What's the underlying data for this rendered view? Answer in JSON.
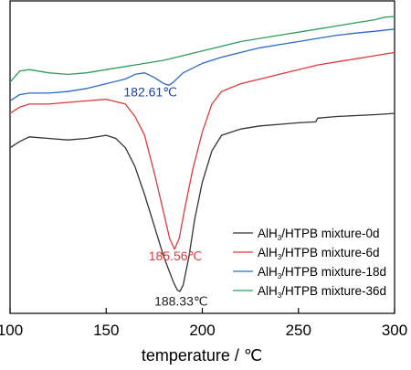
{
  "chart_data": {
    "type": "line",
    "xlabel": "temperature / ℃",
    "xlim": [
      100,
      300
    ],
    "x_ticks": [
      "100",
      "150",
      "200",
      "250",
      "300"
    ],
    "ylim": [
      0,
      100
    ],
    "y_ticks_labeled": false,
    "grid": false,
    "legend_position": "bottom-right",
    "series": [
      {
        "name_parts": [
          "AlH",
          "3",
          "/HTPB mixture-0d"
        ],
        "color": "#333333",
        "points": [
          [
            100,
            53
          ],
          [
            105,
            55
          ],
          [
            110,
            56.5
          ],
          [
            120,
            56
          ],
          [
            130,
            55.5
          ],
          [
            140,
            56
          ],
          [
            150,
            57
          ],
          [
            155,
            56
          ],
          [
            160,
            53
          ],
          [
            165,
            47
          ],
          [
            170,
            38
          ],
          [
            175,
            28
          ],
          [
            180,
            18
          ],
          [
            185,
            10
          ],
          [
            187,
            7.5
          ],
          [
            188.33,
            7
          ],
          [
            190,
            9
          ],
          [
            193,
            18
          ],
          [
            196,
            30
          ],
          [
            200,
            42
          ],
          [
            205,
            52
          ],
          [
            210,
            57
          ],
          [
            220,
            59
          ],
          [
            230,
            60
          ],
          [
            240,
            60.5
          ],
          [
            250,
            61
          ],
          [
            259,
            61.3
          ],
          [
            260,
            62.5
          ],
          [
            270,
            63
          ],
          [
            280,
            63.3
          ],
          [
            290,
            63.6
          ],
          [
            300,
            64
          ]
        ]
      },
      {
        "name_parts": [
          "AlH",
          "3",
          "/HTPB mixture-6d"
        ],
        "color": "#e03a3a",
        "points": [
          [
            100,
            64
          ],
          [
            105,
            66
          ],
          [
            110,
            67
          ],
          [
            120,
            67
          ],
          [
            130,
            67.5
          ],
          [
            140,
            68
          ],
          [
            150,
            68.5
          ],
          [
            160,
            67
          ],
          [
            165,
            63
          ],
          [
            170,
            57
          ],
          [
            175,
            45
          ],
          [
            180,
            32
          ],
          [
            183,
            24
          ],
          [
            185.56,
            20.5
          ],
          [
            188,
            24
          ],
          [
            191,
            34
          ],
          [
            195,
            46
          ],
          [
            200,
            58
          ],
          [
            205,
            67
          ],
          [
            210,
            71
          ],
          [
            220,
            73.5
          ],
          [
            230,
            75
          ],
          [
            240,
            76.5
          ],
          [
            250,
            78
          ],
          [
            260,
            79.5
          ],
          [
            270,
            80.5
          ],
          [
            280,
            81.5
          ],
          [
            290,
            82.5
          ],
          [
            300,
            83.5
          ]
        ]
      },
      {
        "name_parts": [
          "AlH",
          "3",
          "/HTPB mixture-18d"
        ],
        "color": "#2a6bc8",
        "points": [
          [
            100,
            68
          ],
          [
            105,
            70
          ],
          [
            110,
            70.5
          ],
          [
            120,
            70.5
          ],
          [
            130,
            71
          ],
          [
            140,
            72
          ],
          [
            150,
            73.5
          ],
          [
            160,
            75
          ],
          [
            165,
            76.5
          ],
          [
            170,
            77
          ],
          [
            175,
            75.5
          ],
          [
            180,
            73.5
          ],
          [
            182.61,
            73
          ],
          [
            185,
            74
          ],
          [
            190,
            77
          ],
          [
            200,
            80
          ],
          [
            210,
            82
          ],
          [
            220,
            83.5
          ],
          [
            230,
            85
          ],
          [
            240,
            86
          ],
          [
            250,
            87
          ],
          [
            260,
            88
          ],
          [
            270,
            89
          ],
          [
            280,
            89.7
          ],
          [
            290,
            90.3
          ],
          [
            300,
            91
          ]
        ]
      },
      {
        "name_parts": [
          "AlH",
          "3",
          "/HTPB mixture-36d"
        ],
        "color": "#2e9e5b",
        "points": [
          [
            100,
            74
          ],
          [
            105,
            77.5
          ],
          [
            110,
            78
          ],
          [
            120,
            77
          ],
          [
            130,
            76.5
          ],
          [
            140,
            77
          ],
          [
            150,
            78
          ],
          [
            160,
            79
          ],
          [
            170,
            80
          ],
          [
            180,
            81
          ],
          [
            190,
            82.5
          ],
          [
            200,
            84
          ],
          [
            210,
            85.5
          ],
          [
            220,
            87
          ],
          [
            230,
            88
          ],
          [
            240,
            89
          ],
          [
            250,
            90
          ],
          [
            260,
            91
          ],
          [
            270,
            92
          ],
          [
            280,
            93
          ],
          [
            290,
            94
          ],
          [
            295,
            94.8
          ],
          [
            300,
            95
          ]
        ]
      }
    ],
    "annotations": [
      {
        "text": "182.61℃",
        "color": "#1f3fa8",
        "at": [
          173,
          69.5
        ]
      },
      {
        "text": "185.56℃",
        "color": "#e03a3a",
        "at": [
          186,
          17
        ]
      },
      {
        "text": "188.33℃",
        "color": "#222222",
        "at": [
          189,
          2.5
        ]
      }
    ]
  }
}
